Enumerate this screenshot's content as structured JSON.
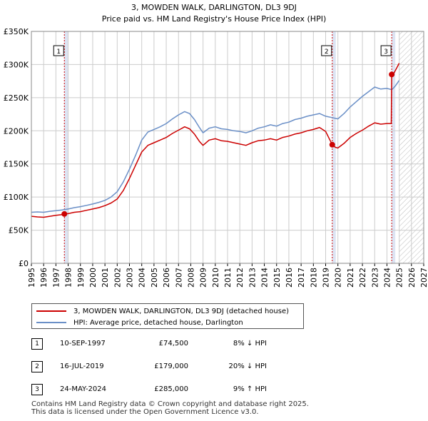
{
  "chart_data": {
    "type": "line",
    "title": "3, MOWDEN WALK, DARLINGTON, DL3 9DJ",
    "subtitle": "Price paid vs. HM Land Registry's House Price Index (HPI)",
    "xlim": [
      1995,
      2027
    ],
    "ylim": [
      0,
      350000
    ],
    "y_ticks": [
      0,
      50000,
      100000,
      150000,
      200000,
      250000,
      300000,
      350000
    ],
    "y_tick_labels": [
      "£0",
      "£50K",
      "£100K",
      "£150K",
      "£200K",
      "£250K",
      "£300K",
      "£350K"
    ],
    "x_ticks": [
      1995,
      1996,
      1997,
      1998,
      1999,
      2000,
      2001,
      2002,
      2003,
      2004,
      2005,
      2006,
      2007,
      2008,
      2009,
      2010,
      2011,
      2012,
      2013,
      2014,
      2015,
      2016,
      2017,
      2018,
      2019,
      2020,
      2021,
      2022,
      2023,
      2024,
      2025,
      2026,
      2027
    ],
    "x_tick_labels": [
      "1995",
      "1996",
      "1997",
      "1998",
      "1999",
      "2000",
      "2001",
      "2002",
      "2003",
      "2004",
      "2005",
      "2006",
      "2007",
      "2008",
      "2009",
      "2010",
      "2011",
      "2012",
      "2013",
      "2014",
      "2015",
      "2016",
      "2017",
      "2018",
      "2019",
      "2020",
      "2021",
      "2022",
      "2023",
      "2024",
      "2025",
      "2026",
      "2027"
    ],
    "forecast_start": 2025.0,
    "series": [
      {
        "name": "3, MOWDEN WALK, DARLINGTON, DL3 9DJ (detached house)",
        "color": "#cc0000",
        "points": [
          [
            1995.0,
            71000
          ],
          [
            1995.5,
            70000
          ],
          [
            1996.0,
            69500
          ],
          [
            1996.5,
            71000
          ],
          [
            1997.0,
            72500
          ],
          [
            1997.5,
            73500
          ],
          [
            1997.69,
            74500
          ],
          [
            1998.0,
            75000
          ],
          [
            1998.5,
            77000
          ],
          [
            1999.0,
            78000
          ],
          [
            1999.5,
            80000
          ],
          [
            2000.0,
            82000
          ],
          [
            2000.5,
            84000
          ],
          [
            2001.0,
            87000
          ],
          [
            2001.5,
            91000
          ],
          [
            2002.0,
            97000
          ],
          [
            2002.5,
            110000
          ],
          [
            2003.0,
            128000
          ],
          [
            2003.5,
            148000
          ],
          [
            2004.0,
            168000
          ],
          [
            2004.5,
            178000
          ],
          [
            2005.0,
            182000
          ],
          [
            2005.5,
            186000
          ],
          [
            2006.0,
            190000
          ],
          [
            2006.5,
            196000
          ],
          [
            2007.0,
            201000
          ],
          [
            2007.5,
            206000
          ],
          [
            2007.9,
            203000
          ],
          [
            2008.3,
            195000
          ],
          [
            2008.7,
            184000
          ],
          [
            2009.0,
            178000
          ],
          [
            2009.5,
            186000
          ],
          [
            2010.0,
            188000
          ],
          [
            2010.5,
            185000
          ],
          [
            2011.0,
            184000
          ],
          [
            2011.5,
            182000
          ],
          [
            2012.0,
            180000
          ],
          [
            2012.5,
            178000
          ],
          [
            2013.0,
            182000
          ],
          [
            2013.5,
            185000
          ],
          [
            2014.0,
            186000
          ],
          [
            2014.5,
            188000
          ],
          [
            2015.0,
            186000
          ],
          [
            2015.5,
            190000
          ],
          [
            2016.0,
            192000
          ],
          [
            2016.5,
            195000
          ],
          [
            2017.0,
            197000
          ],
          [
            2017.5,
            200000
          ],
          [
            2018.0,
            202000
          ],
          [
            2018.5,
            205000
          ],
          [
            2019.0,
            199000
          ],
          [
            2019.54,
            179000
          ],
          [
            2019.8,
            175000
          ],
          [
            2020.0,
            174000
          ],
          [
            2020.5,
            181000
          ],
          [
            2021.0,
            190000
          ],
          [
            2021.5,
            196000
          ],
          [
            2022.0,
            201000
          ],
          [
            2022.5,
            207000
          ],
          [
            2023.0,
            212000
          ],
          [
            2023.5,
            210000
          ],
          [
            2024.0,
            211000
          ],
          [
            2024.35,
            211000
          ],
          [
            2024.39,
            285000
          ],
          [
            2024.6,
            288000
          ],
          [
            2024.8,
            295000
          ],
          [
            2025.0,
            302000
          ]
        ]
      },
      {
        "name": "HPI: Average price, detached house, Darlington",
        "color": "#6a8fc7",
        "points": [
          [
            1995.0,
            77000
          ],
          [
            1995.5,
            77500
          ],
          [
            1996.0,
            77000
          ],
          [
            1996.5,
            78500
          ],
          [
            1997.0,
            79500
          ],
          [
            1997.5,
            80500
          ],
          [
            1998.0,
            82000
          ],
          [
            1998.5,
            84000
          ],
          [
            1999.0,
            85500
          ],
          [
            1999.5,
            87500
          ],
          [
            2000.0,
            89500
          ],
          [
            2000.5,
            92000
          ],
          [
            2001.0,
            95000
          ],
          [
            2001.5,
            100000
          ],
          [
            2002.0,
            108000
          ],
          [
            2002.5,
            123000
          ],
          [
            2003.0,
            142000
          ],
          [
            2003.5,
            163000
          ],
          [
            2004.0,
            186000
          ],
          [
            2004.5,
            198000
          ],
          [
            2005.0,
            202000
          ],
          [
            2005.5,
            206000
          ],
          [
            2006.0,
            211000
          ],
          [
            2006.5,
            218000
          ],
          [
            2007.0,
            224000
          ],
          [
            2007.5,
            229000
          ],
          [
            2007.9,
            226000
          ],
          [
            2008.3,
            217000
          ],
          [
            2008.7,
            205000
          ],
          [
            2009.0,
            197000
          ],
          [
            2009.5,
            204000
          ],
          [
            2010.0,
            206000
          ],
          [
            2010.5,
            203000
          ],
          [
            2011.0,
            202000
          ],
          [
            2011.5,
            200000
          ],
          [
            2012.0,
            199000
          ],
          [
            2012.5,
            197000
          ],
          [
            2013.0,
            200000
          ],
          [
            2013.5,
            204000
          ],
          [
            2014.0,
            206000
          ],
          [
            2014.5,
            209000
          ],
          [
            2015.0,
            207000
          ],
          [
            2015.5,
            211000
          ],
          [
            2016.0,
            213000
          ],
          [
            2016.5,
            217000
          ],
          [
            2017.0,
            219000
          ],
          [
            2017.5,
            222000
          ],
          [
            2018.0,
            224000
          ],
          [
            2018.5,
            226000
          ],
          [
            2019.0,
            222000
          ],
          [
            2019.5,
            220000
          ],
          [
            2020.0,
            218000
          ],
          [
            2020.5,
            226000
          ],
          [
            2021.0,
            236000
          ],
          [
            2021.5,
            244000
          ],
          [
            2022.0,
            252000
          ],
          [
            2022.5,
            259000
          ],
          [
            2023.0,
            266000
          ],
          [
            2023.5,
            263000
          ],
          [
            2024.0,
            264000
          ],
          [
            2024.4,
            262000
          ],
          [
            2024.7,
            268000
          ],
          [
            2025.0,
            276000
          ]
        ]
      }
    ],
    "transactions": [
      {
        "label": "1",
        "x": 1997.69,
        "price_value": 74500,
        "date": "10-SEP-1997",
        "price": "£74,500",
        "hpi_change": "8% ↓ HPI"
      },
      {
        "label": "2",
        "x": 2019.54,
        "price_value": 179000,
        "date": "16-JUL-2019",
        "price": "£179,000",
        "hpi_change": "20% ↓ HPI"
      },
      {
        "label": "3",
        "x": 2024.39,
        "price_value": 285000,
        "date": "24-MAY-2024",
        "price": "£285,000",
        "hpi_change": "9% ↑ HPI"
      }
    ],
    "legend": [
      {
        "label": "3, MOWDEN WALK, DARLINGTON, DL3 9DJ (detached house)",
        "color": "#cc0000"
      },
      {
        "label": "HPI: Average price, detached house, Darlington",
        "color": "#6a8fc7"
      }
    ],
    "marker_color": "#cc0000",
    "vline_color": "#cc0000",
    "band_color": "#dde4f3",
    "grid_color": "#cccccc"
  },
  "footer": {
    "line1": "Contains HM Land Registry data © Crown copyright and database right 2025.",
    "line2": "This data is licensed under the Open Government Licence v3.0."
  }
}
